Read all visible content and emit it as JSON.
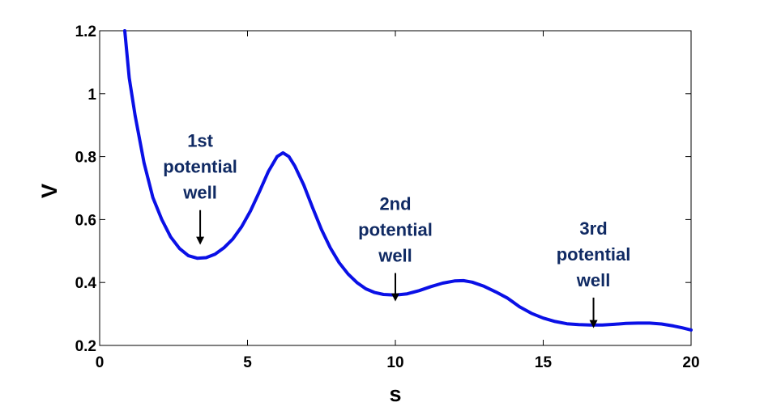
{
  "chart_data": {
    "type": "line",
    "title": "",
    "xlabel": "s",
    "ylabel": "V",
    "xlim": [
      0,
      20
    ],
    "ylim": [
      0.2,
      1.2
    ],
    "xticks": [
      "0",
      "5",
      "10",
      "15",
      "20"
    ],
    "yticks": [
      "0.2",
      "0.4",
      "0.6",
      "0.8",
      "1",
      "1.2"
    ],
    "grid": false,
    "series": [
      {
        "color": "#0a10e6",
        "points": [
          [
            0.85,
            1.2
          ],
          [
            1.0,
            1.05
          ],
          [
            1.2,
            0.93
          ],
          [
            1.5,
            0.78
          ],
          [
            1.8,
            0.67
          ],
          [
            2.1,
            0.6
          ],
          [
            2.4,
            0.545
          ],
          [
            2.7,
            0.508
          ],
          [
            3.0,
            0.485
          ],
          [
            3.3,
            0.477
          ],
          [
            3.6,
            0.479
          ],
          [
            3.9,
            0.49
          ],
          [
            4.2,
            0.51
          ],
          [
            4.5,
            0.538
          ],
          [
            4.8,
            0.577
          ],
          [
            5.1,
            0.627
          ],
          [
            5.4,
            0.688
          ],
          [
            5.7,
            0.752
          ],
          [
            6.0,
            0.8
          ],
          [
            6.2,
            0.812
          ],
          [
            6.4,
            0.8
          ],
          [
            6.6,
            0.77
          ],
          [
            6.9,
            0.71
          ],
          [
            7.2,
            0.638
          ],
          [
            7.5,
            0.568
          ],
          [
            7.8,
            0.51
          ],
          [
            8.1,
            0.463
          ],
          [
            8.4,
            0.427
          ],
          [
            8.7,
            0.4
          ],
          [
            9.0,
            0.38
          ],
          [
            9.3,
            0.368
          ],
          [
            9.6,
            0.362
          ],
          [
            10.0,
            0.36
          ],
          [
            10.4,
            0.364
          ],
          [
            10.8,
            0.374
          ],
          [
            11.2,
            0.387
          ],
          [
            11.6,
            0.398
          ],
          [
            12.0,
            0.405
          ],
          [
            12.3,
            0.406
          ],
          [
            12.6,
            0.401
          ],
          [
            13.0,
            0.388
          ],
          [
            13.4,
            0.37
          ],
          [
            13.8,
            0.35
          ],
          [
            14.2,
            0.323
          ],
          [
            14.6,
            0.302
          ],
          [
            15.0,
            0.287
          ],
          [
            15.4,
            0.276
          ],
          [
            15.8,
            0.269
          ],
          [
            16.2,
            0.266
          ],
          [
            16.6,
            0.265
          ],
          [
            17.0,
            0.265
          ],
          [
            17.4,
            0.267
          ],
          [
            17.8,
            0.27
          ],
          [
            18.2,
            0.271
          ],
          [
            18.6,
            0.271
          ],
          [
            19.0,
            0.268
          ],
          [
            19.4,
            0.262
          ],
          [
            19.7,
            0.256
          ],
          [
            20.0,
            0.249
          ]
        ]
      }
    ],
    "annotations": [
      {
        "lines": [
          "1st",
          "potential",
          "well"
        ],
        "color": "#102a63",
        "arrow_from": [
          3.4,
          0.63
        ],
        "arrow_to": [
          3.4,
          0.525
        ]
      },
      {
        "lines": [
          "2nd",
          "potential",
          "well"
        ],
        "color": "#102a63",
        "arrow_from": [
          10.0,
          0.43
        ],
        "arrow_to": [
          10.0,
          0.345
        ]
      },
      {
        "lines": [
          "3rd",
          "potential",
          "well"
        ],
        "color": "#102a63",
        "arrow_from": [
          16.7,
          0.352
        ],
        "arrow_to": [
          16.7,
          0.26
        ]
      }
    ]
  }
}
